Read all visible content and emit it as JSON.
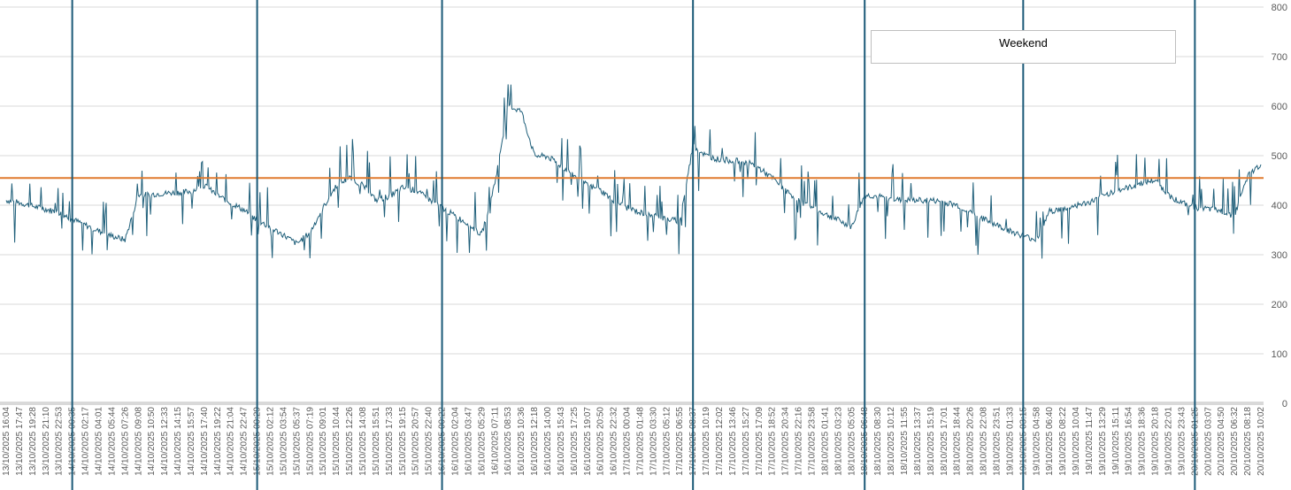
{
  "chart_data": {
    "type": "line",
    "title": "",
    "xlabel": "",
    "ylabel": "",
    "ylim": [
      0,
      800
    ],
    "y_ticks": [
      0,
      100,
      200,
      300,
      400,
      500,
      600,
      700,
      800
    ],
    "y_axis_side": "right",
    "grid": true,
    "legend": {
      "entries": [
        "Weekend"
      ],
      "placement": "top-right"
    },
    "x_tick_labels": [
      "13/10/2025 16:04",
      "13/10/2025 17:47",
      "13/10/2025 19:28",
      "13/10/2025 21:10",
      "13/10/2025 22:53",
      "14/10/2025 00:35",
      "14/10/2025 02:17",
      "14/10/2025 04:01",
      "14/10/2025 05:44",
      "14/10/2025 07:26",
      "14/10/2025 09:08",
      "14/10/2025 10:50",
      "14/10/2025 12:33",
      "14/10/2025 14:15",
      "14/10/2025 15:57",
      "14/10/2025 17:40",
      "14/10/2025 19:22",
      "14/10/2025 21:04",
      "14/10/2025 22:47",
      "15/10/2025 00:29",
      "15/10/2025 02:12",
      "15/10/2025 03:54",
      "15/10/2025 05:37",
      "15/10/2025 07:19",
      "15/10/2025 09:01",
      "15/10/2025 10:44",
      "15/10/2025 12:26",
      "15/10/2025 14:08",
      "15/10/2025 15:51",
      "15/10/2025 17:33",
      "15/10/2025 19:15",
      "15/10/2025 20:57",
      "15/10/2025 22:40",
      "16/10/2025 00:22",
      "16/10/2025 02:04",
      "16/10/2025 03:47",
      "16/10/2025 05:29",
      "16/10/2025 07:11",
      "16/10/2025 08:53",
      "16/10/2025 10:36",
      "16/10/2025 12:18",
      "16/10/2025 14:00",
      "16/10/2025 15:43",
      "16/10/2025 17:25",
      "16/10/2025 19:07",
      "16/10/2025 20:50",
      "16/10/2025 22:32",
      "17/10/2025 00:04",
      "17/10/2025 01:48",
      "17/10/2025 03:30",
      "17/10/2025 05:12",
      "17/10/2025 06:55",
      "17/10/2025 08:37",
      "17/10/2025 10:19",
      "17/10/2025 12:02",
      "17/10/2025 13:46",
      "17/10/2025 15:27",
      "17/10/2025 17:09",
      "17/10/2025 18:52",
      "17/10/2025 20:34",
      "17/10/2025 22:16",
      "17/10/2025 23:58",
      "18/10/2025 01:41",
      "18/10/2025 03:23",
      "18/10/2025 05:05",
      "18/10/2025 06:48",
      "18/10/2025 08:30",
      "18/10/2025 10:12",
      "18/10/2025 11:55",
      "18/10/2025 13:37",
      "18/10/2025 15:19",
      "18/10/2025 17:01",
      "18/10/2025 18:44",
      "18/10/2025 20:26",
      "18/10/2025 22:08",
      "18/10/2025 23:51",
      "19/10/2025 01:33",
      "19/10/2025 03:15",
      "19/10/2025 04:58",
      "19/10/2025 06:40",
      "19/10/2025 08:22",
      "19/10/2025 10:04",
      "19/10/2025 11:47",
      "19/10/2025 13:29",
      "19/10/2025 15:11",
      "19/10/2025 16:54",
      "19/10/2025 18:36",
      "19/10/2025 20:18",
      "19/10/2025 22:01",
      "19/10/2025 23:43",
      "20/10/2025 01:25",
      "20/10/2025 03:07",
      "20/10/2025 04:50",
      "20/10/2025 06:32",
      "20/10/2025 08:18",
      "20/10/2025 10:02"
    ],
    "vertical_markers": [
      "14/10/2025 00:35",
      "15/10/2025 00:29",
      "16/10/2025 00:22",
      "17/10/2025 08:37",
      "18/10/2025 06:48",
      "19/10/2025 03:15",
      "20/10/2025 01:25"
    ],
    "series": [
      {
        "name": "",
        "type": "line",
        "color": "#1f5f7a",
        "x": [
          "13/10/2025 16:04",
          "13/10/2025 17:47",
          "13/10/2025 19:28",
          "13/10/2025 21:10",
          "13/10/2025 22:53",
          "14/10/2025 00:35",
          "14/10/2025 02:17",
          "14/10/2025 04:01",
          "14/10/2025 05:44",
          "14/10/2025 07:26",
          "14/10/2025 09:08",
          "14/10/2025 10:50",
          "14/10/2025 12:33",
          "14/10/2025 14:15",
          "14/10/2025 15:57",
          "14/10/2025 17:40",
          "14/10/2025 19:22",
          "14/10/2025 21:04",
          "14/10/2025 22:47",
          "15/10/2025 00:29",
          "15/10/2025 02:12",
          "15/10/2025 03:54",
          "15/10/2025 05:37",
          "15/10/2025 07:19",
          "15/10/2025 09:01",
          "15/10/2025 10:44",
          "15/10/2025 12:26",
          "15/10/2025 14:08",
          "15/10/2025 15:51",
          "15/10/2025 17:33",
          "15/10/2025 19:15",
          "15/10/2025 20:57",
          "15/10/2025 22:40",
          "16/10/2025 00:22",
          "16/10/2025 02:04",
          "16/10/2025 03:47",
          "16/10/2025 05:29",
          "16/10/2025 07:11",
          "16/10/2025 08:53",
          "16/10/2025 10:36",
          "16/10/2025 12:18",
          "16/10/2025 14:00",
          "16/10/2025 15:43",
          "16/10/2025 17:25",
          "16/10/2025 19:07",
          "16/10/2025 20:50",
          "16/10/2025 22:32",
          "17/10/2025 00:04",
          "17/10/2025 01:48",
          "17/10/2025 03:30",
          "17/10/2025 05:12",
          "17/10/2025 06:55",
          "17/10/2025 08:37",
          "17/10/2025 10:19",
          "17/10/2025 12:02",
          "17/10/2025 13:46",
          "17/10/2025 15:27",
          "17/10/2025 17:09",
          "17/10/2025 18:52",
          "17/10/2025 20:34",
          "17/10/2025 22:16",
          "17/10/2025 23:58",
          "18/10/2025 01:41",
          "18/10/2025 03:23",
          "18/10/2025 05:05",
          "18/10/2025 06:48",
          "18/10/2025 08:30",
          "18/10/2025 10:12",
          "18/10/2025 11:55",
          "18/10/2025 13:37",
          "18/10/2025 15:19",
          "18/10/2025 17:01",
          "18/10/2025 18:44",
          "18/10/2025 20:26",
          "18/10/2025 22:08",
          "18/10/2025 23:51",
          "19/10/2025 01:33",
          "19/10/2025 03:15",
          "19/10/2025 04:58",
          "19/10/2025 06:40",
          "19/10/2025 08:22",
          "19/10/2025 10:04",
          "19/10/2025 11:47",
          "19/10/2025 13:29",
          "19/10/2025 15:11",
          "19/10/2025 16:54",
          "19/10/2025 18:36",
          "19/10/2025 20:18",
          "19/10/2025 22:01",
          "19/10/2025 23:43",
          "20/10/2025 01:25",
          "20/10/2025 03:07",
          "20/10/2025 04:50",
          "20/10/2025 06:32",
          "20/10/2025 08:18",
          "20/10/2025 10:02"
        ],
        "values": [
          410,
          405,
          398,
          392,
          385,
          372,
          360,
          348,
          338,
          330,
          420,
          422,
          424,
          426,
          428,
          440,
          420,
          405,
          390,
          370,
          355,
          340,
          322,
          345,
          395,
          440,
          455,
          440,
          410,
          418,
          435,
          430,
          412,
          395,
          378,
          362,
          340,
          445,
          600,
          590,
          500,
          498,
          480,
          460,
          440,
          430,
          410,
          395,
          385,
          380,
          372,
          368,
          520,
          500,
          492,
          490,
          488,
          475,
          455,
          430,
          410,
          395,
          382,
          370,
          356,
          420,
          418,
          412,
          410,
          410,
          410,
          406,
          400,
          386,
          372,
          360,
          348,
          338,
          330,
          388,
          392,
          400,
          405,
          418,
          430,
          435,
          445,
          450,
          420,
          405,
          395,
          392,
          388,
          378,
          460,
          482
        ]
      },
      {
        "name": "",
        "type": "line",
        "color": "#e07a2e",
        "values_constant": 455
      }
    ]
  }
}
